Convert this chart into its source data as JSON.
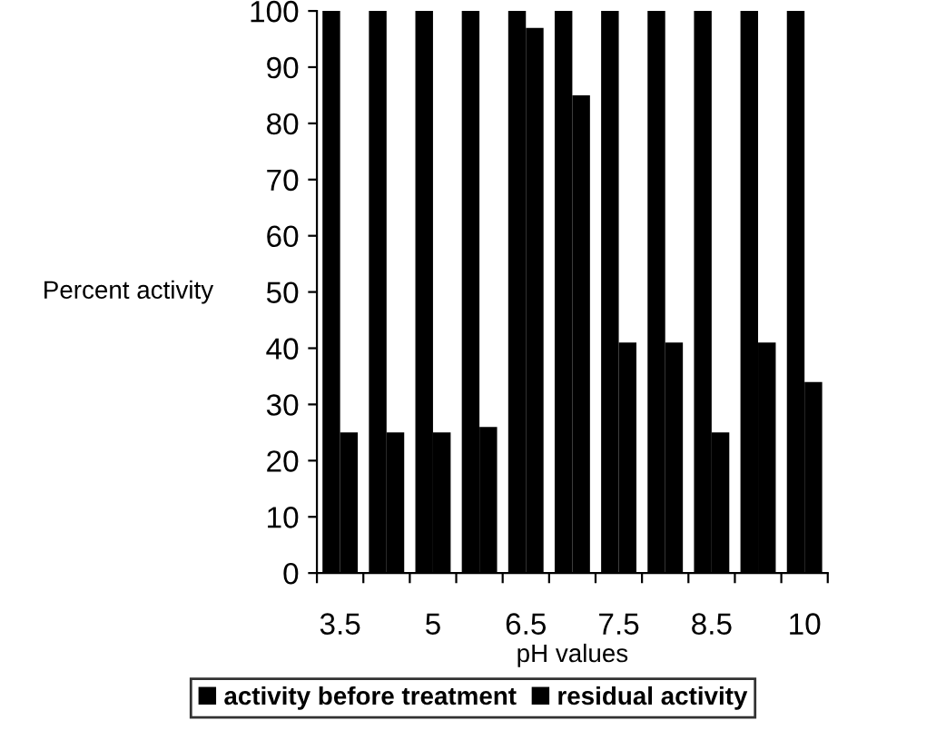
{
  "chart_data": {
    "type": "bar",
    "xlabel": "pH values",
    "ylabel": "Percent activity",
    "categories": [
      "3.5",
      null,
      "5",
      null,
      "6.5",
      null,
      "7.5",
      null,
      "8.5",
      null,
      "10"
    ],
    "series": [
      {
        "name": "activity before treatment",
        "color": "#000000",
        "values": [
          100,
          100,
          100,
          100,
          100,
          100,
          100,
          100,
          100,
          100,
          100
        ]
      },
      {
        "name": "residual activity",
        "color": "#000000",
        "values": [
          25,
          25,
          25,
          26,
          97,
          85,
          41,
          41,
          25,
          41,
          34
        ]
      }
    ],
    "ylim": [
      0,
      100
    ],
    "yticks": [
      0,
      10,
      20,
      30,
      40,
      50,
      60,
      70,
      80,
      90,
      100
    ],
    "grid": false,
    "legend": "bottom"
  }
}
